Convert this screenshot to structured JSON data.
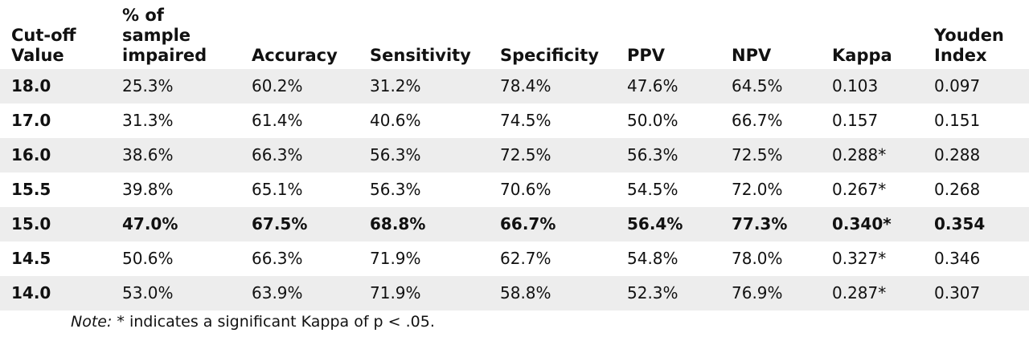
{
  "table": {
    "headers": [
      "Cut-off\nValue",
      "% of\nsample\nimpaired",
      "Accuracy",
      "Sensitivity",
      "Specificity",
      "PPV",
      "NPV",
      "Kappa",
      "Youden\nIndex"
    ],
    "rows": [
      {
        "cells": [
          "18.0",
          "25.3%",
          "60.2%",
          "31.2%",
          "78.4%",
          "47.6%",
          "64.5%",
          "0.103",
          "0.097"
        ],
        "bold": false
      },
      {
        "cells": [
          "17.0",
          "31.3%",
          "61.4%",
          "40.6%",
          "74.5%",
          "50.0%",
          "66.7%",
          "0.157",
          "0.151"
        ],
        "bold": false
      },
      {
        "cells": [
          "16.0",
          "38.6%",
          "66.3%",
          "56.3%",
          "72.5%",
          "56.3%",
          "72.5%",
          "0.288*",
          "0.288"
        ],
        "bold": false
      },
      {
        "cells": [
          "15.5",
          "39.8%",
          "65.1%",
          "56.3%",
          "70.6%",
          "54.5%",
          "72.0%",
          "0.267*",
          "0.268"
        ],
        "bold": false
      },
      {
        "cells": [
          "15.0",
          "47.0%",
          "67.5%",
          "68.8%",
          "66.7%",
          "56.4%",
          "77.3%",
          "0.340*",
          "0.354"
        ],
        "bold": true
      },
      {
        "cells": [
          "14.5",
          "50.6%",
          "66.3%",
          "71.9%",
          "62.7%",
          "54.8%",
          "78.0%",
          "0.327*",
          "0.346"
        ],
        "bold": false
      },
      {
        "cells": [
          "14.0",
          "53.0%",
          "63.9%",
          "71.9%",
          "58.8%",
          "52.3%",
          "76.9%",
          "0.287*",
          "0.307"
        ],
        "bold": false
      }
    ]
  },
  "note": {
    "label": "Note:",
    "text": " * indicates a significant Kappa of p < .05."
  }
}
